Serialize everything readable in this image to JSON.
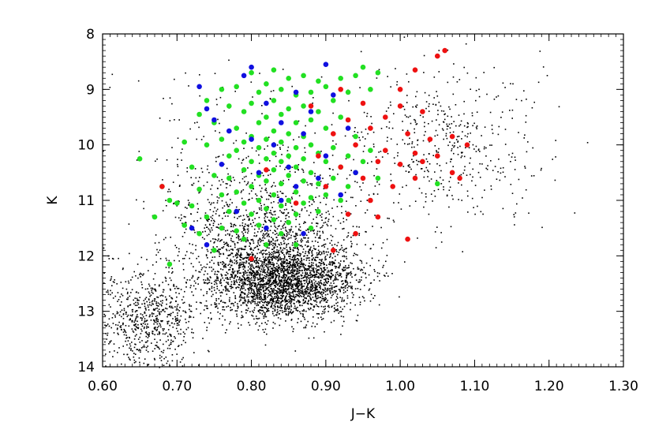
{
  "chart_data": {
    "type": "scatter",
    "title": "",
    "xlabel": "J−K",
    "ylabel": "K",
    "xlim": [
      0.6,
      1.3
    ],
    "ylim": [
      14,
      8
    ],
    "y_inverted": true,
    "grid": false,
    "x_ticks": [
      "0.60",
      "0.70",
      "0.80",
      "0.90",
      "1.00",
      "1.10",
      "1.20",
      "1.30"
    ],
    "y_ticks": [
      "8",
      "9",
      "10",
      "11",
      "12",
      "13",
      "14"
    ],
    "series_colors": {
      "field": "#000000",
      "green": "#22e022",
      "blue": "#1010e0",
      "red": "#ee1111"
    },
    "series": [
      {
        "color": "#000000",
        "marker": "dot",
        "description_points": "dense field population, sampled",
        "regions": [
          {
            "x_center": 0.84,
            "y_center": 12.45,
            "x_spread": 0.05,
            "y_spread": 0.35,
            "count": 2600
          },
          {
            "x_center": 0.66,
            "y_center": 13.1,
            "x_spread": 0.035,
            "y_spread": 0.45,
            "count": 700
          },
          {
            "x_center": 0.82,
            "y_center": 11.6,
            "x_spread": 0.06,
            "y_spread": 0.5,
            "count": 900
          },
          {
            "x_center": 1.06,
            "y_center": 10.0,
            "x_spread": 0.07,
            "y_spread": 0.7,
            "count": 500
          },
          {
            "x_center": 0.78,
            "y_center": 10.5,
            "x_spread": 0.08,
            "y_spread": 0.9,
            "count": 300
          }
        ]
      },
      {
        "color": "#22e022",
        "marker": "filled-circle",
        "points": [
          [
            0.65,
            10.25
          ],
          [
            0.67,
            11.3
          ],
          [
            0.68,
            10.75
          ],
          [
            0.69,
            11.0
          ],
          [
            0.69,
            12.15
          ],
          [
            0.7,
            11.05
          ],
          [
            0.71,
            9.95
          ],
          [
            0.71,
            11.45
          ],
          [
            0.72,
            10.4
          ],
          [
            0.72,
            11.1
          ],
          [
            0.73,
            9.45
          ],
          [
            0.73,
            10.8
          ],
          [
            0.73,
            11.6
          ],
          [
            0.74,
            9.2
          ],
          [
            0.74,
            10.0
          ],
          [
            0.74,
            11.3
          ],
          [
            0.75,
            9.6
          ],
          [
            0.75,
            10.55
          ],
          [
            0.75,
            11.9
          ],
          [
            0.76,
            9.0
          ],
          [
            0.76,
            9.9
          ],
          [
            0.76,
            10.9
          ],
          [
            0.76,
            11.5
          ],
          [
            0.77,
            9.3
          ],
          [
            0.77,
            10.2
          ],
          [
            0.77,
            10.6
          ],
          [
            0.77,
            11.2
          ],
          [
            0.78,
            8.95
          ],
          [
            0.78,
            9.7
          ],
          [
            0.78,
            10.1
          ],
          [
            0.78,
            10.85
          ],
          [
            0.78,
            11.55
          ],
          [
            0.79,
            9.4
          ],
          [
            0.79,
            9.95
          ],
          [
            0.79,
            10.45
          ],
          [
            0.79,
            11.05
          ],
          [
            0.79,
            11.7
          ],
          [
            0.8,
            8.7
          ],
          [
            0.8,
            9.25
          ],
          [
            0.8,
            9.85
          ],
          [
            0.8,
            10.3
          ],
          [
            0.8,
            10.75
          ],
          [
            0.8,
            11.25
          ],
          [
            0.81,
            9.05
          ],
          [
            0.81,
            9.6
          ],
          [
            0.81,
            10.05
          ],
          [
            0.81,
            10.55
          ],
          [
            0.81,
            11.0
          ],
          [
            0.81,
            11.45
          ],
          [
            0.82,
            8.9
          ],
          [
            0.82,
            9.5
          ],
          [
            0.82,
            9.9
          ],
          [
            0.82,
            10.25
          ],
          [
            0.82,
            10.65
          ],
          [
            0.82,
            11.15
          ],
          [
            0.82,
            11.8
          ],
          [
            0.83,
            8.65
          ],
          [
            0.83,
            9.2
          ],
          [
            0.83,
            9.75
          ],
          [
            0.83,
            10.15
          ],
          [
            0.83,
            10.45
          ],
          [
            0.83,
            10.9
          ],
          [
            0.83,
            11.35
          ],
          [
            0.84,
            9.0
          ],
          [
            0.84,
            9.45
          ],
          [
            0.84,
            9.95
          ],
          [
            0.84,
            10.3
          ],
          [
            0.84,
            10.7
          ],
          [
            0.84,
            11.1
          ],
          [
            0.84,
            11.6
          ],
          [
            0.85,
            8.8
          ],
          [
            0.85,
            9.35
          ],
          [
            0.85,
            9.8
          ],
          [
            0.85,
            10.2
          ],
          [
            0.85,
            10.55
          ],
          [
            0.85,
            11.0
          ],
          [
            0.85,
            11.4
          ],
          [
            0.86,
            9.1
          ],
          [
            0.86,
            9.6
          ],
          [
            0.86,
            10.05
          ],
          [
            0.86,
            10.4
          ],
          [
            0.86,
            10.85
          ],
          [
            0.86,
            11.25
          ],
          [
            0.86,
            11.8
          ],
          [
            0.87,
            8.75
          ],
          [
            0.87,
            9.3
          ],
          [
            0.87,
            9.85
          ],
          [
            0.87,
            10.25
          ],
          [
            0.87,
            10.65
          ],
          [
            0.87,
            11.05
          ],
          [
            0.88,
            9.05
          ],
          [
            0.88,
            9.55
          ],
          [
            0.88,
            10.0
          ],
          [
            0.88,
            10.5
          ],
          [
            0.88,
            10.95
          ],
          [
            0.88,
            11.5
          ],
          [
            0.89,
            8.85
          ],
          [
            0.89,
            9.4
          ],
          [
            0.89,
            10.15
          ],
          [
            0.89,
            10.7
          ],
          [
            0.89,
            11.2
          ],
          [
            0.9,
            8.95
          ],
          [
            0.9,
            9.7
          ],
          [
            0.9,
            10.3
          ],
          [
            0.9,
            10.9
          ],
          [
            0.91,
            9.2
          ],
          [
            0.91,
            10.05
          ],
          [
            0.91,
            10.6
          ],
          [
            0.92,
            8.8
          ],
          [
            0.92,
            9.5
          ],
          [
            0.92,
            10.4
          ],
          [
            0.92,
            11.0
          ],
          [
            0.93,
            9.05
          ],
          [
            0.93,
            10.2
          ],
          [
            0.93,
            10.75
          ],
          [
            0.94,
            8.75
          ],
          [
            0.94,
            9.85
          ],
          [
            0.94,
            10.5
          ],
          [
            0.95,
            8.6
          ],
          [
            0.95,
            10.3
          ],
          [
            0.96,
            9.0
          ],
          [
            0.96,
            10.1
          ],
          [
            0.97,
            8.7
          ],
          [
            0.97,
            10.6
          ],
          [
            1.05,
            10.7
          ]
        ]
      },
      {
        "color": "#1010e0",
        "marker": "filled-circle",
        "points": [
          [
            0.72,
            11.5
          ],
          [
            0.73,
            8.95
          ],
          [
            0.74,
            9.35
          ],
          [
            0.74,
            11.8
          ],
          [
            0.75,
            9.55
          ],
          [
            0.76,
            10.35
          ],
          [
            0.77,
            9.75
          ],
          [
            0.78,
            11.2
          ],
          [
            0.79,
            8.75
          ],
          [
            0.8,
            8.6
          ],
          [
            0.8,
            9.9
          ],
          [
            0.81,
            10.5
          ],
          [
            0.82,
            9.25
          ],
          [
            0.82,
            11.5
          ],
          [
            0.83,
            10.0
          ],
          [
            0.84,
            9.6
          ],
          [
            0.84,
            11.0
          ],
          [
            0.85,
            10.4
          ],
          [
            0.86,
            9.05
          ],
          [
            0.86,
            10.75
          ],
          [
            0.87,
            9.8
          ],
          [
            0.87,
            11.6
          ],
          [
            0.88,
            9.4
          ],
          [
            0.89,
            10.6
          ],
          [
            0.9,
            8.55
          ],
          [
            0.9,
            10.2
          ],
          [
            0.91,
            9.1
          ],
          [
            0.92,
            10.9
          ],
          [
            0.93,
            9.7
          ],
          [
            0.94,
            10.5
          ]
        ]
      },
      {
        "color": "#ee1111",
        "marker": "filled-circle",
        "points": [
          [
            0.68,
            10.75
          ],
          [
            0.8,
            12.05
          ],
          [
            0.82,
            10.45
          ],
          [
            0.86,
            11.05
          ],
          [
            0.88,
            9.3
          ],
          [
            0.89,
            10.2
          ],
          [
            0.9,
            10.75
          ],
          [
            0.91,
            9.8
          ],
          [
            0.91,
            11.9
          ],
          [
            0.92,
            9.0
          ],
          [
            0.92,
            10.4
          ],
          [
            0.93,
            9.55
          ],
          [
            0.93,
            11.25
          ],
          [
            0.94,
            10.0
          ],
          [
            0.94,
            11.6
          ],
          [
            0.95,
            9.25
          ],
          [
            0.95,
            10.6
          ],
          [
            0.96,
            9.7
          ],
          [
            0.96,
            11.0
          ],
          [
            0.97,
            10.3
          ],
          [
            0.97,
            11.3
          ],
          [
            0.98,
            9.5
          ],
          [
            0.98,
            10.1
          ],
          [
            0.99,
            10.75
          ],
          [
            1.0,
            9.0
          ],
          [
            1.0,
            10.35
          ],
          [
            1.01,
            9.8
          ],
          [
            1.01,
            11.7
          ],
          [
            1.02,
            10.15
          ],
          [
            1.02,
            10.6
          ],
          [
            1.03,
            9.4
          ],
          [
            1.03,
            10.3
          ],
          [
            1.04,
            9.9
          ],
          [
            1.05,
            10.2
          ],
          [
            1.05,
            8.4
          ],
          [
            1.06,
            8.3
          ],
          [
            1.07,
            10.5
          ],
          [
            1.07,
            9.85
          ],
          [
            1.08,
            10.6
          ],
          [
            1.09,
            10.0
          ],
          [
            1.02,
            8.65
          ],
          [
            1.0,
            9.3
          ]
        ]
      }
    ]
  }
}
